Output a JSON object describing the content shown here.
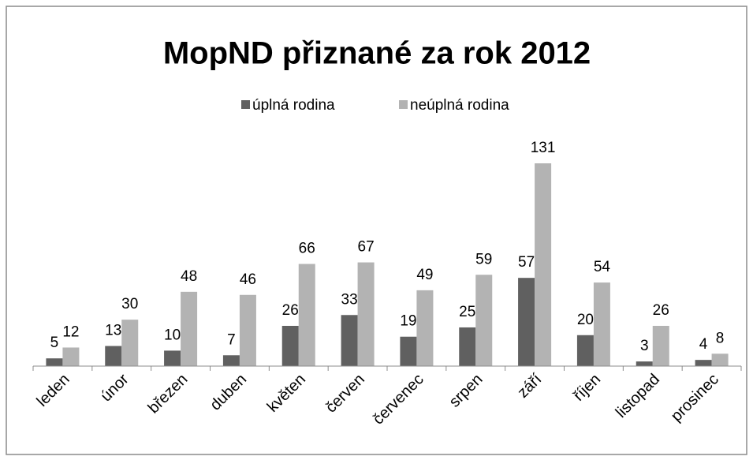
{
  "chart_data": {
    "type": "bar",
    "title": "MopND přiznané za rok 2012",
    "categories": [
      "leden",
      "únor",
      "březen",
      "duben",
      "květen",
      "červen",
      "červenec",
      "srpen",
      "září",
      "říjen",
      "listopad",
      "prosinec"
    ],
    "series": [
      {
        "name": "úplná rodina",
        "color": "#606060",
        "values": [
          5,
          13,
          10,
          7,
          26,
          33,
          19,
          25,
          57,
          20,
          3,
          4
        ]
      },
      {
        "name": "neúplná rodina",
        "color": "#b3b3b3",
        "values": [
          12,
          30,
          48,
          46,
          66,
          67,
          49,
          59,
          131,
          54,
          26,
          8
        ]
      }
    ],
    "legend": "top"
  }
}
